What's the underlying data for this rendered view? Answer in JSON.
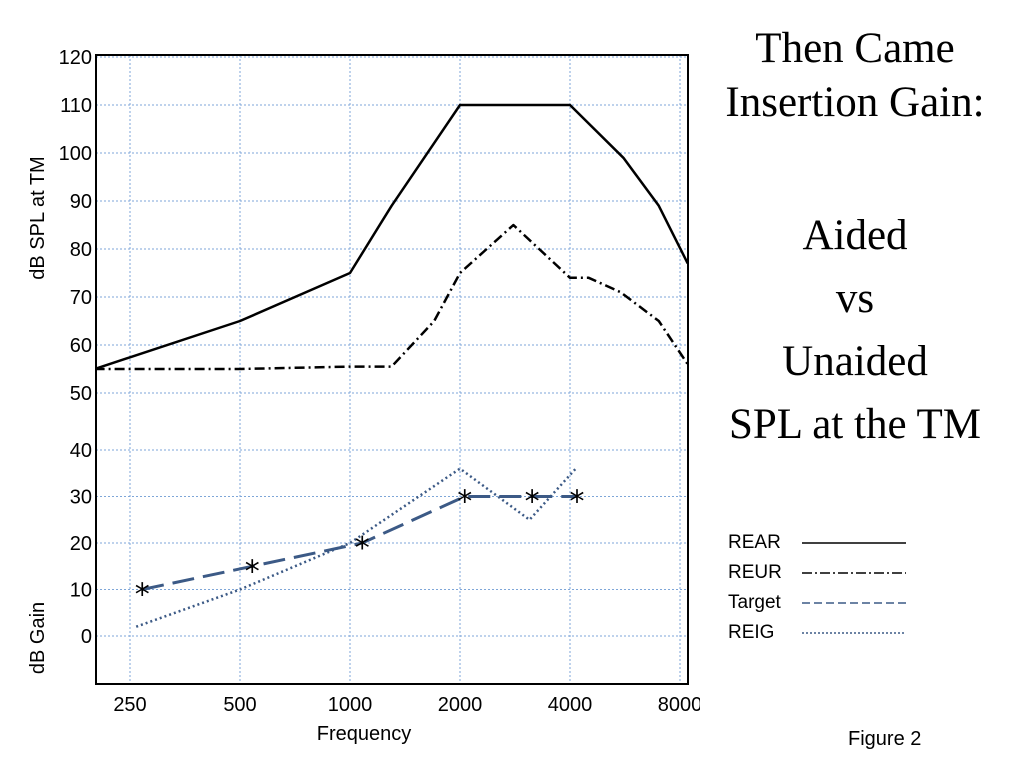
{
  "chart_data": {
    "type": "line",
    "x_scale": "log2",
    "x_ticks": [
      250,
      500,
      1000,
      2000,
      4000,
      8000
    ],
    "x_tick_labels": [
      "250",
      "500",
      "1000",
      "2000",
      "4000",
      "8000"
    ],
    "xlabel": "Frequency",
    "ylabel_upper": "dB SPL at TM",
    "ylabel_lower": "dB Gain",
    "upper_ticks": [
      50,
      60,
      70,
      80,
      90,
      100,
      110,
      120
    ],
    "lower_ticks": [
      0,
      10,
      20,
      30,
      40
    ],
    "grid": true,
    "legend_position": "right",
    "series": [
      {
        "name": "REAR",
        "axis": "spl",
        "color": "#000000",
        "style": "solid",
        "x": [
          200,
          500,
          1000,
          1300,
          2000,
          4000,
          5600,
          7000,
          8400
        ],
        "y": [
          55,
          65,
          75,
          89,
          110,
          110,
          99,
          89,
          77
        ]
      },
      {
        "name": "REUR",
        "axis": "spl",
        "color": "#000000",
        "style": "dashdot",
        "x": [
          200,
          500,
          1000,
          1300,
          1700,
          2000,
          2800,
          4000,
          4500,
          5500,
          7000,
          8400
        ],
        "y": [
          55,
          55,
          55.5,
          55.5,
          65,
          75,
          85,
          74,
          74,
          71,
          65,
          56
        ]
      },
      {
        "name": "Target",
        "axis": "gain",
        "color": "#3c5a86",
        "style": "dashed",
        "markers": "*",
        "x": [
          270,
          540,
          1080,
          2060,
          3150,
          4180
        ],
        "y": [
          10,
          15,
          20,
          30,
          30,
          30
        ]
      },
      {
        "name": "REIG",
        "axis": "gain",
        "color": "#3c5a86",
        "style": "dotted",
        "x": [
          260,
          500,
          1000,
          2000,
          3100,
          4150
        ],
        "y": [
          2,
          10,
          20,
          36,
          25,
          36
        ]
      }
    ]
  },
  "slide": {
    "title_line1": "Then Came",
    "title_line2": "Insertion Gain:",
    "body_line1": "Aided",
    "body_line2": "vs",
    "body_line3": "Unaided",
    "body_line4": "SPL at the TM",
    "caption": "Figure 2"
  }
}
